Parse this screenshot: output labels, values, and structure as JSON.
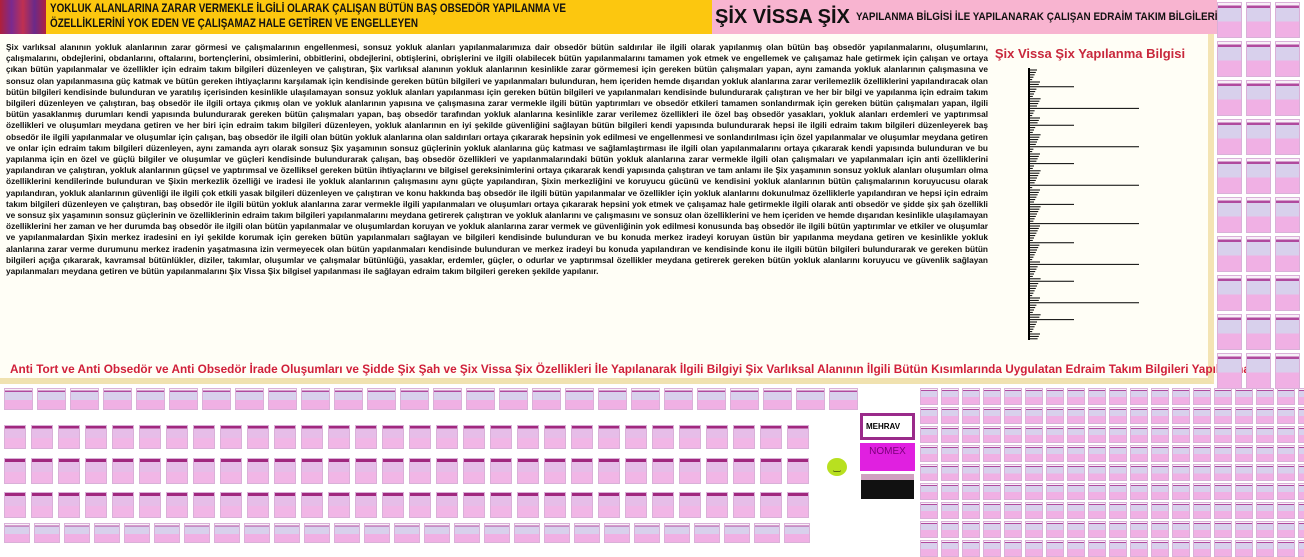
{
  "header": {
    "left_title": "YOKLUK ALANLARINA ZARAR VERMEKLE İLGİLİ OLARAK ÇALIŞAN BÜTÜN BAŞ OBSEDÖR YAPILANMA VE ÖZELLİKLERİNİ YOK EDEN VE ÇALIŞAMAZ HALE GETİREN VE ENGELLEYEN",
    "right_big": "ŞİX VİSSA ŞİX",
    "right_small": "YAPILANMA BİLGİSİ İLE YAPILANARAK ÇALIŞAN EDRAİM TAKIM BİLGİLERİ"
  },
  "main": {
    "paragraph": "Şix varlıksal alanının yokluk alanlarının zarar görmesi ve çalışmalarının engellenmesi, sonsuz yokluk alanları yapılanmalarımıza dair obsedör bütün saldırılar ile ilgili olarak yapılanmış olan bütün baş obsedör yapılanmalarını, oluşumlarını, çalışmalarını, obdejlerini, obdanlarını, oftalarını, bortençlerini, obsimlerini, obbitlerini, obdejlerini, obtişlerini, obrişlerini ve ilgili olabilecek bütün yapılanmalarını tamamen yok etmek ve engellemek ve çalışamaz hale getirmek için çalışan ve ortaya çıkan bütün yapılanmalar ve özellikler için edraim takım bilgileri düzenleyen ve çalıştıran, Şix varlıksal alanının yokluk alanlarının kesinlikle zarar görmemesi için gereken bütün çalışmaları yapan, aynı zamanda yokluk alanlarının çalışmasına ve sonsuz olan yapılanmasına güç katmak ve bütün gereken ihtiyaçlarını karşılamak için kendisinde gereken bütün bilgileri ve yapılanmaları bulunduran, hem içeriden hemde dışarıdan yokluk alanlarına zarar verilemezlik özelliklerini yapılandıracak olan bütün bilgileri kendisinde bulunduran ve yaratılış içerisinden kesinlikle ulaşılamayan sonsuz yokluk alanları yapılanması için gereken bütün bilgileri ve yapılanmaları kendisinde bulundurarak çalıştıran ve her bir bilgi ve yapılanma için edraim takım bilgileri düzenleyen ve çalıştıran, baş obsedör ile ilgili ortaya çıkmış olan ve yokluk alanlarının yapısına ve çalışmasına zarar vermeklе ilgili bütün yaptırımları ve obsedör etkileri tamamen sonlandırmak için gereken bütün çalışmaları yapan, ilgili bütün yasaklanmış durumları kendi yapısında bulundurarak gereken bütün çalışmaları yapan, baş obsedör tarafından yokluk alanlarına kesinlikle zarar verilemez özellikleri ile özel baş obsedör yasakları, yokluk alanları erdemleri ve yaptırımsal özellikleri ve oluşumları meydana getiren ve her biri için edraim takım bilgileri düzenleyen, yokluk alanlarının en iyi şekilde güvenliğini sağlayan bütün bilgileri kendi yapısında bulundurarak hepsi ile ilgili edraim takım bilgileri düzenleyerek baş obsedör ile ilgili yapılanmalar ve oluşumlar için çalışan, baş obsedör ile ilgili olan bütün yokluk alanlarına olan saldırıları ortaya çıkararak hepsinin yok edilmesi ve engellenmesi ve sonlandırılması için özel yapılanmalar ve oluşumlar meydana getiren ve onlar için edraim takım bilgileri düzenleyen, aynı zamanda ayrı olarak sonsuz Şix yaşamının sonsuz güçlerinin yokluk alanlarına güç katması ve sağlamlaştırması ile ilgili olan yapılanmalarını ortaya çıkararak kendi yapısında bulunduran ve bu yapılanma için en özel ve güçlü bilgiler ve oluşumlar ve güçleri kendisinde bulundurarak çalışan, baş obsedör özellikleri ve yapılanmalarındaki bütün yokluk alanlarına zarar vermekle ilgili olan çalışmaları ve yapılanmaları için anti özelliklerini yapılandıran ve çalıştıran, yokluk alanlarının güçsel ve yaptırımsal ve özelliksel gereken bütün ihtiyaçlarını ve bilgisel gereksinimlerini ortaya çıkararak kendi yapısında çalıştıran ve tam anlamı ile Şix yaşamının sonsuz yokluk alanları oluşumları olma özelliklerini kendilerinde bulunduran ve Şixin merkezlik özelliği ve iradesi ile yokluk alanlarının çalışmasını aynı güçte yapılandıran, Şixin merkezliğini ve koruyucu gücünü ve kendisini yokluk alanlarının bütün çalışmalarının koruyucusu olarak yapılandıran, yokluk alanlarının güvenliği ile ilgili çok etkili yasak bilgileri düzenleyen ve çalıştıran ve konu hakkında baş obsedör ile ilgili bütün yapılanmalar ve özellikler için yokluk alanlarını dokunulmaz özelliklerle yapılandıran ve hepsi için edraim takım bilgileri düzenleyen ve çalıştıran, baş obsedör ile ilgili bütün yokluk alanlarına zarar vermekle ilgili yapılanmaları ve oluşumları ortaya çıkararak hepsini yok etmek ve çalışamaz hale getirmekle ilgili olarak anti obsedör ve şidde şix şah özellikli ve sonsuz şix yaşamının sonsuz güçlerinin ve özelliklerinin edraim takım bilgileri yapılanmalarını meydana getirerek çalıştıran ve yokluk alanlarını ve çalışmasını ve sonsuz olan özelliklerini ve hem içeriden ve hemde dışarıdan kesinlikle ulaşılamayan özelliklerini her zaman ve her durumda baş obsedör ile ilgili olan bütün yapılanmalar ve oluşumlardan koruyan ve yokluk alanlarına zarar vermek ve güvenliğinin yok edilmesi konusunda baş obsedör ile ilgili bütün yaptırımlar ve etkiler ve oluşumlar ve yapılanmalardan Şixin merkez iradesini en iyi şekilde korumak için gereken bütün yapılanmaları sağlayan ve bilgileri kendisinde bulunduran ve bu konuda merkez iradeyi koruyan üstün bir yapılanma meydana getiren ve kesinlikle yokluk alanlarına zarar verme durumunu merkez iradenin yaşatmasına izin vermeyecek olan bütün yapılanmaları kendisinde bulunduran ve merkez iradeyi bu konuda yapılandıran ve kendisinde konu ile ilgili bütün bilgileri bulundurarak ve gereken bütün bilgileri açığa çıkararak, kavramsal bütünlükler, diziler, takımlar, oluşumlar ve çalışmalar bütünlüğü, yasaklar, erdemler, güçler, o odurlar ve yaptırımsal özellikler meydana getirerek gereken bütün yokluk alanlarını koruyucu ve güvenlik sağlayan yapılanmaları meydana getiren ve bütün yapılanmalarını Şix Vissa Şix bilgisel yapılanması ile sağlayan edraim takım bilgileri gereken şekilde yapılanır.",
    "right_title": "Şix Vissa Şix Yapılanma Bilgisi",
    "bottom_title": "Anti Tort ve Anti Obsedör ve Anti Obsedör İrade Oluşumları ve Şidde Şix Şah ve Şix Vissa Şix Özellikleri İle Yapılanarak İlgili Bilgiyi Şix Varlıksal Alanının İlgili Bütün Kısımlarında Uygulatan Edraim Takım Bilgileri Yapılanması"
  },
  "ads": {
    "ad1": "MEHRAV",
    "ad2": "NOMEX"
  },
  "colors": {
    "header_left": "#fcc70f",
    "header_right": "#f8b4d0",
    "accent_red": "#c8283c"
  },
  "icons": [
    "smiley-face-icon"
  ]
}
